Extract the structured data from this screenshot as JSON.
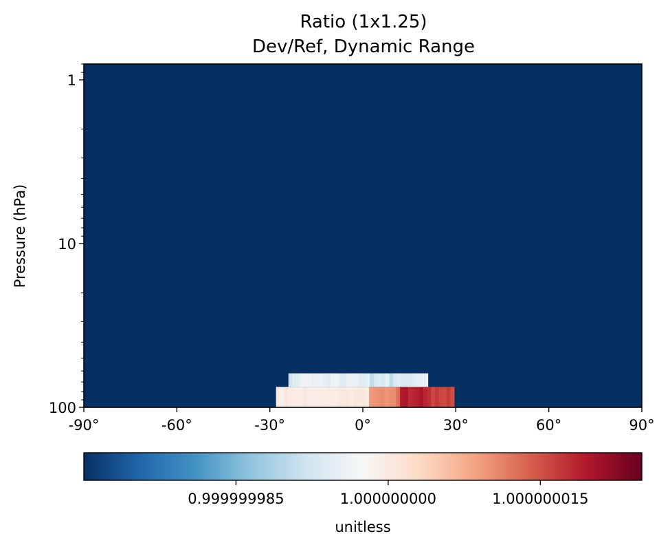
{
  "chart_data": {
    "type": "heatmap",
    "title_lines": [
      "Ratio (1x1.25)",
      "Dev/Ref, Dynamic Range"
    ],
    "ylabel": "Pressure (hPa)",
    "xlim": [
      -90,
      90
    ],
    "ylim": [
      100,
      0.8
    ],
    "y_scale": "log",
    "x_ticks": [
      -90,
      -60,
      -30,
      0,
      30,
      60,
      90
    ],
    "x_tick_labels": [
      "-90°",
      "-60°",
      "-30°",
      "0°",
      "30°",
      "60°",
      "90°"
    ],
    "y_ticks": [
      1,
      10,
      100
    ],
    "y_tick_labels": [
      "1",
      "10",
      "100"
    ],
    "grid": false,
    "background_value": 0.99999997,
    "nonuniform_rows": [
      {
        "pressure_range": [
          75,
          100
        ],
        "lat_start": -28,
        "lat_step": 1.25,
        "values": [
          1.0,
          0.9999999992,
          1.0000000006,
          0.9999999996,
          1.0,
          0.9999999995,
          0.9999999993,
          1.0000000008,
          0.9999999995,
          0.9999999996,
          0.9999999995,
          0.9999999994,
          0.9999999997,
          1.0000000001,
          0.9999999995,
          0.9999999995,
          1.0000000003,
          1.0000000004,
          1.0000000002,
          0.9999999995,
          1.0000000002,
          1.0000000005,
          1.0000000006,
          0.9999999996,
          1.0000000094,
          1.0000000098,
          1.0000000101,
          1.0000000105,
          1.0000000098,
          1.0000000102,
          1.0000000104,
          1.0000000128,
          1.0000000196,
          1.0000000201,
          1.000000018,
          1.0000000184,
          1.0000000189,
          1.0000000201,
          1.0000000184,
          1.0000000178,
          1.0000000158,
          1.000000017,
          1.000000016,
          1.0000000155,
          1.0000000168,
          1.0000000154
        ]
      },
      {
        "pressure_range": [
          62,
          75
        ],
        "lat_start": -24,
        "lat_step": 1.25,
        "values": [
          0.999999992,
          0.9999999944,
          0.999999994,
          0.9999999961,
          0.9999999967,
          0.9999999964,
          0.9999999953,
          0.9999999958,
          0.9999999957,
          0.9999999952,
          0.9999999941,
          0.9999999961,
          0.9999999962,
          0.9999999942,
          0.9999999938,
          0.999999996,
          0.9999999956,
          0.9999999954,
          0.999999994,
          0.9999999938,
          0.999999995,
          0.9999999905,
          0.9999999928,
          0.9999999937,
          0.9999999931,
          0.999999995,
          0.9999999903,
          0.9999999935,
          0.9999999937,
          0.9999999933,
          0.9999999931,
          0.9999999933,
          0.9999999944,
          0.9999999948,
          0.9999999953,
          0.9999999957
        ]
      }
    ],
    "colorbar": {
      "label": "unitless",
      "vmin": 0.99999997,
      "vmax": 1.000000025,
      "ticks": [
        0.999999985,
        1.0,
        1.000000015
      ],
      "tick_labels": [
        "0.999999985",
        "1.000000000",
        "1.000000015"
      ],
      "colormap": "RdBu_r",
      "stops": [
        "#053061",
        "#2166ac",
        "#4393c3",
        "#92c5de",
        "#d1e5f0",
        "#f7f7f7",
        "#fddbc7",
        "#f4a582",
        "#d6604d",
        "#b2182b",
        "#67001f"
      ]
    }
  }
}
